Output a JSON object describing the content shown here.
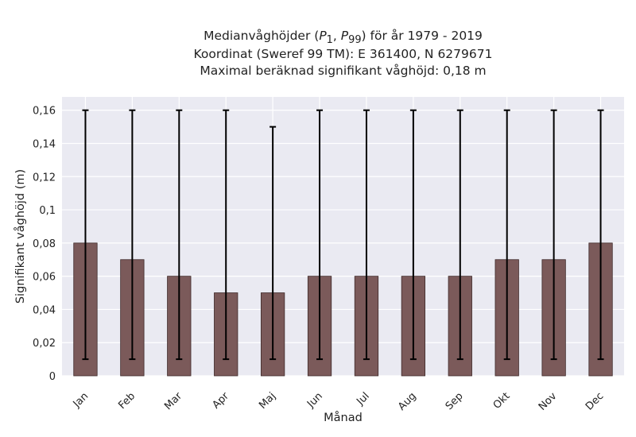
{
  "chart_data": {
    "type": "bar",
    "title_lines": [
      "Medianvåghöjder (P1, P99) för år 1979 - 2019",
      "Koordinat (Sweref 99 TM): E 361400, N 6279671",
      "Maximal beräknad signifikant våghöjd: 0,18 m"
    ],
    "title_sub_1": "1",
    "title_sub_99": "99",
    "xlabel": "Månad",
    "ylabel": "Signifikant våghöjd (m)",
    "categories": [
      "Jan",
      "Feb",
      "Mar",
      "Apr",
      "Maj",
      "Jun",
      "Jul",
      "Aug",
      "Sep",
      "Okt",
      "Nov",
      "Dec"
    ],
    "values": [
      0.08,
      0.07,
      0.06,
      0.05,
      0.05,
      0.06,
      0.06,
      0.06,
      0.06,
      0.07,
      0.07,
      0.08
    ],
    "p1": [
      0.01,
      0.01,
      0.01,
      0.01,
      0.01,
      0.01,
      0.01,
      0.01,
      0.01,
      0.01,
      0.01,
      0.01
    ],
    "p99": [
      0.16,
      0.16,
      0.16,
      0.16,
      0.15,
      0.16,
      0.16,
      0.16,
      0.16,
      0.16,
      0.16,
      0.16
    ],
    "ylim": [
      0,
      0.168
    ],
    "yticks": [
      0,
      0.02,
      0.04,
      0.06,
      0.08,
      0.1,
      0.12,
      0.14,
      0.16
    ],
    "ytick_labels": [
      "0",
      "0,02",
      "0,04",
      "0,06",
      "0,08",
      "0,1",
      "0,12",
      "0,14",
      "0,16"
    ],
    "grid": true,
    "colors": {
      "bar": "#7b5a5a",
      "bar_edge": "#3e2a2a",
      "error": "#000000",
      "plot_bg": "#eaeaf2",
      "grid": "#ffffff"
    }
  }
}
